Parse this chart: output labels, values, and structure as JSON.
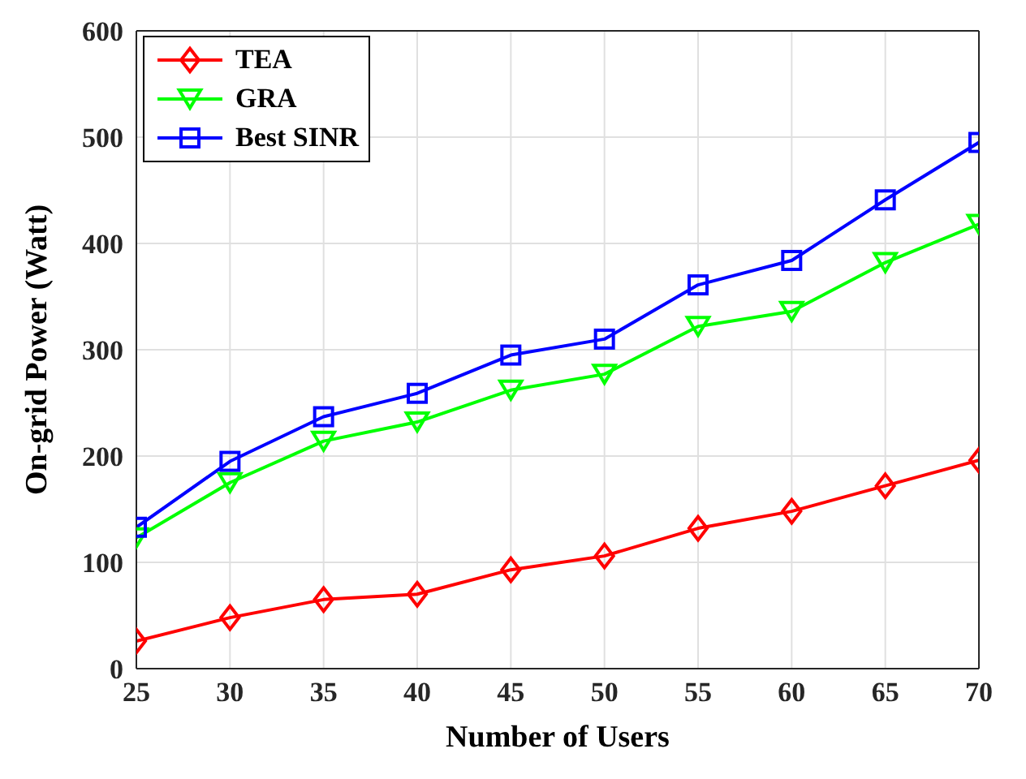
{
  "chart_data": {
    "type": "line",
    "xlabel": "Number of Users",
    "ylabel": "On-grid Power (Watt)",
    "x": [
      25,
      30,
      35,
      40,
      45,
      50,
      55,
      60,
      65,
      70
    ],
    "series": [
      {
        "name": "TEA",
        "color": "#ff0000",
        "marker": "diamond",
        "values": [
          26,
          48,
          65,
          70,
          93,
          106,
          132,
          148,
          172,
          196
        ]
      },
      {
        "name": "GRA",
        "color": "#00ff00",
        "marker": "triangle",
        "values": [
          123,
          175,
          214,
          232,
          262,
          277,
          322,
          336,
          382,
          418
        ]
      },
      {
        "name": "Best SINR",
        "color": "#0000ff",
        "marker": "square",
        "values": [
          133,
          195,
          237,
          259,
          295,
          310,
          361,
          384,
          441,
          495
        ]
      }
    ],
    "xlim": [
      25,
      70
    ],
    "xticks": [
      25,
      30,
      35,
      40,
      45,
      50,
      55,
      60,
      65,
      70
    ],
    "ylim": [
      0,
      600
    ],
    "yticks": [
      0,
      100,
      200,
      300,
      400,
      500,
      600
    ],
    "grid": true,
    "legend": "top left",
    "line_style": "solid"
  }
}
